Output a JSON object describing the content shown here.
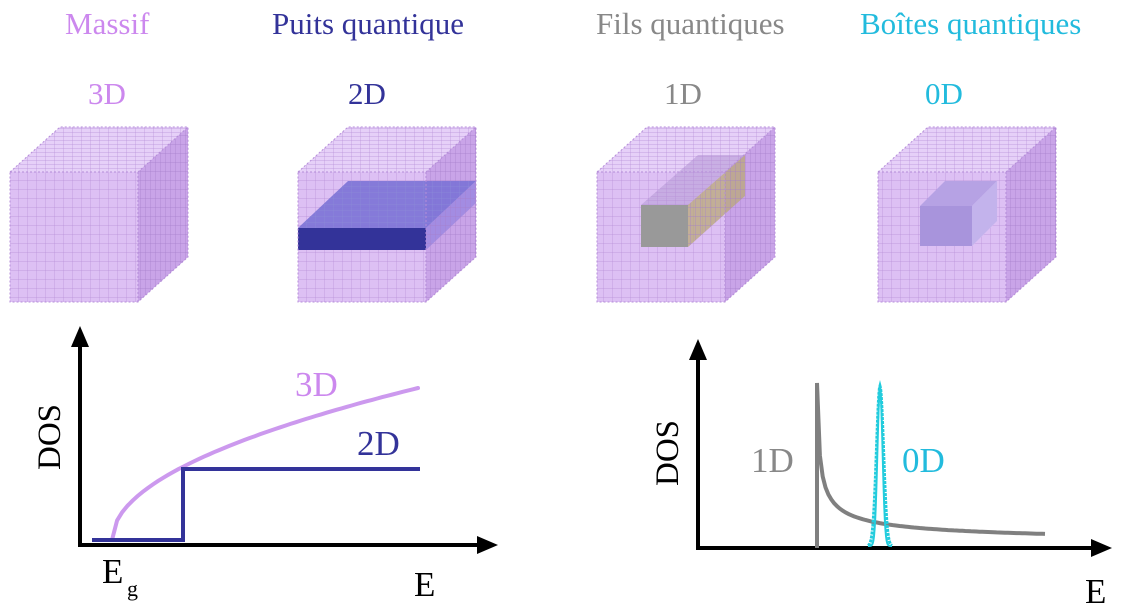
{
  "colors": {
    "massif": "#cc88ee",
    "puits": "#333399",
    "fils": "#888888",
    "boites": "#22bbdd",
    "cube_front": "#ddc0f4",
    "cube_top": "#e6d0f8",
    "cube_side": "#c9a4e8",
    "curve3d": "#cc99ee",
    "step2d": "#333399",
    "spike1d": "#808080",
    "peak0d": "#22ccdd",
    "axis": "#000000"
  },
  "headers": [
    {
      "title": "Massif",
      "dim": "3D"
    },
    {
      "title": "Puits quantique",
      "dim": "2D"
    },
    {
      "title": "Fils quantiques",
      "dim": "1D"
    },
    {
      "title": "Boîtes quantiques",
      "dim": "0D"
    }
  ],
  "plot_left": {
    "ylabel": "DOS",
    "xlabel": "E",
    "eg_main": "E",
    "eg_sub": "g",
    "label_3d": "3D",
    "label_2d": "2D"
  },
  "plot_right": {
    "ylabel": "DOS",
    "xlabel": "E",
    "label_1d": "1D",
    "label_0d": "0D"
  }
}
